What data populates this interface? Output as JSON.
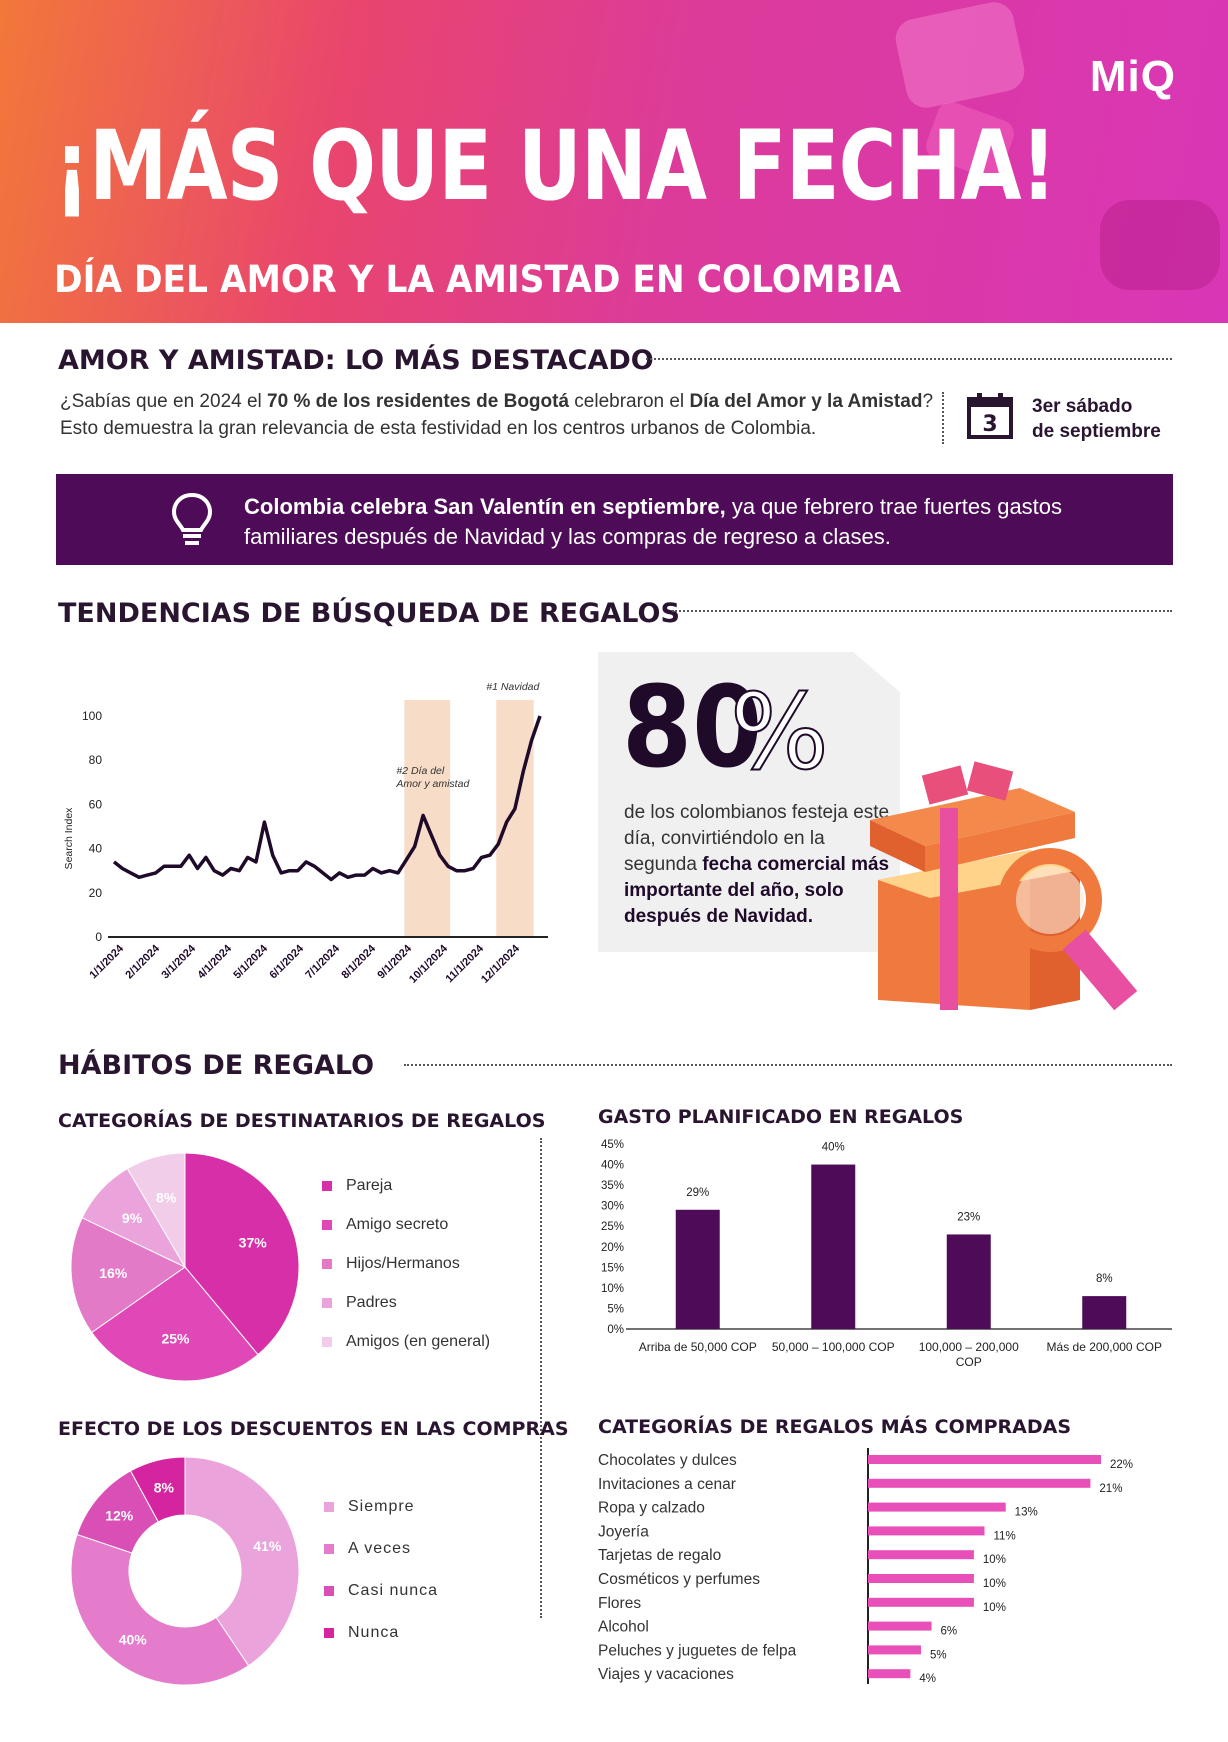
{
  "hero": {
    "logo": "MiQ",
    "title": "¡MÁS QUE UNA FECHA!",
    "subtitle": "DÍA DEL AMOR Y LA AMISTAD EN COLOMBIA"
  },
  "highlights": {
    "title": "AMOR Y AMISTAD: LO MÁS DESTACADO",
    "intro_1": "¿Sabías que en 2024 el ",
    "intro_b1": "70 % de los residentes de Bogotá",
    "intro_2": " celebraron el ",
    "intro_b2": "Día del Amor y la Amistad",
    "intro_3": "? Esto demuestra la gran relevancia de esta festividad en los centros urbanos de Colombia.",
    "calendar_number": "3",
    "date_line1": "3er sábado",
    "date_line2": "de septiembre"
  },
  "banner": {
    "bold": "Colombia celebra San Valentín en septiembre,",
    "rest": " ya que febrero trae fuertes gastos familiares después de Navidad y las compras de regreso a clases."
  },
  "trends": {
    "title": "TENDENCIAS DE BÚSQUEDA DE REGALOS",
    "stat_number": "80",
    "stat_pct": "%",
    "stat_text_1": "de los colombianos festeja este día, convirtiéndolo en la segunda ",
    "stat_text_b": "fecha comercial más importante del año, solo después de Navidad."
  },
  "habits": {
    "title": "HÁBITOS DE REGALO",
    "recipients_title": "CATEGORÍAS DE DESTINATARIOS DE REGALOS",
    "spend_title": "GASTO PLANIFICADO EN REGALOS",
    "discount_title": "EFECTO DE LOS DESCUENTOS EN LAS COMPRAS",
    "categories_title": "CATEGORÍAS DE REGALOS MÁS COMPRADAS"
  },
  "colors": {
    "hero_orange": "#f2783a",
    "hero_pink": "#d936b7",
    "deep_purple": "#4e0b58",
    "magenta": "#d62fa8",
    "bar_pink": "#e84fb8",
    "highlight_band": "#f7dcc8"
  },
  "chart_data": [
    {
      "type": "line",
      "ylabel": "Search Index",
      "ylim": [
        0,
        100
      ],
      "yticks": [
        0,
        20,
        40,
        60,
        80,
        100
      ],
      "x_tick_labels": [
        "1/1/2024",
        "2/1/2024",
        "3/1/2024",
        "4/1/2024",
        "5/1/2024",
        "6/1/2024",
        "7/1/2024",
        "8/1/2024",
        "9/1/2024",
        "10/1/2024",
        "11/1/2024",
        "12/1/2024"
      ],
      "x_weeks": [
        0,
        1,
        2,
        3,
        4,
        5,
        6,
        7,
        8,
        9,
        10,
        11,
        12,
        13,
        14,
        15,
        16,
        17,
        18,
        19,
        20,
        21,
        22,
        23,
        24,
        25,
        26,
        27,
        28,
        29,
        30,
        31,
        32,
        33,
        34,
        35,
        36,
        37,
        38,
        39,
        40,
        41,
        42,
        43,
        44,
        45,
        46,
        47,
        48,
        49,
        50,
        51
      ],
      "values": [
        34,
        31,
        29,
        27,
        28,
        29,
        32,
        32,
        32,
        37,
        31,
        36,
        30,
        28,
        31,
        30,
        36,
        34,
        52,
        37,
        29,
        30,
        30,
        34,
        32,
        29,
        26,
        29,
        27,
        28,
        28,
        31,
        29,
        30,
        29,
        35,
        41,
        55,
        46,
        37,
        32,
        30,
        30,
        31,
        36,
        37,
        42,
        52,
        58,
        75,
        89,
        100
      ],
      "annotations": [
        {
          "label": "#2 Día del Amor y amistad",
          "x_start_week": 35,
          "x_end_week": 40
        },
        {
          "label": "#1 Navidad",
          "x_start_week": 46,
          "x_end_week": 50
        }
      ],
      "grid": false
    },
    {
      "type": "pie",
      "title": "CATEGORÍAS DE DESTINATARIOS DE REGALOS",
      "labels": [
        "Pareja",
        "Amigo secreto",
        "Hijos/Hermanos",
        "Padres",
        "Amigos (en general)"
      ],
      "values": [
        37,
        25,
        16,
        9,
        8
      ],
      "colors": [
        "#d62fa8",
        "#df48b6",
        "#e27ac8",
        "#eba3db",
        "#f1cdea"
      ],
      "legend": "right"
    },
    {
      "type": "bar",
      "title": "GASTO PLANIFICADO EN REGALOS",
      "categories": [
        "Arriba de 50,000 COP",
        "50,000 – 100,000 COP",
        "100,000 – 200,000 COP",
        "Más de 200,000 COP"
      ],
      "values": [
        29,
        40,
        23,
        8
      ],
      "ylim": [
        0,
        45
      ],
      "yticks": [
        0,
        5,
        10,
        15,
        20,
        25,
        30,
        35,
        40,
        45
      ],
      "color": "#4e0b58"
    },
    {
      "type": "pie",
      "subtype": "donut",
      "title": "EFECTO DE LOS DESCUENTOS EN LAS COMPRAS",
      "labels": [
        "Siempre",
        "A veces",
        "Casi nunca",
        "Nunca"
      ],
      "values": [
        41,
        40,
        12,
        8
      ],
      "colors": [
        "#eaa3db",
        "#e47bcb",
        "#d94fb5",
        "#d4249f"
      ],
      "legend": "right"
    },
    {
      "type": "bar",
      "orientation": "horizontal",
      "title": "CATEGORÍAS DE REGALOS MÁS COMPRADAS",
      "categories": [
        "Chocolates y dulces",
        "Invitaciones a cenar",
        "Ropa y calzado",
        "Joyería",
        "Tarjetas de regalo",
        "Cosméticos y perfumes",
        "Flores",
        "Alcohol",
        "Peluches y juguetes de felpa",
        "Viajes y vacaciones"
      ],
      "values": [
        22,
        21,
        13,
        11,
        10,
        10,
        10,
        6,
        5,
        4
      ],
      "color": "#e84fb8"
    }
  ]
}
